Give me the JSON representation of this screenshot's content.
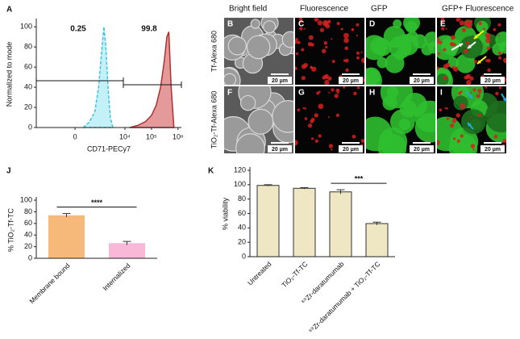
{
  "chart_data": [
    {
      "panel": "A",
      "type": "area",
      "xlabel": "CD71-PECy7",
      "ylabel": "Normalized to mode",
      "xscale": "asinh",
      "xlim": [
        -3800,
        1340000
      ],
      "xticks": [
        0,
        {
          "value": 10000,
          "label": "10⁴"
        },
        {
          "value": 100000,
          "label": "10⁵"
        },
        {
          "value": 1000000,
          "label": "10⁶"
        }
      ],
      "ylim": [
        0,
        105
      ],
      "yticks": [
        0,
        20,
        40,
        60,
        80,
        100
      ],
      "annotations": [
        "0.25",
        "99.8"
      ],
      "series": [
        {
          "color": "#3cc3e0",
          "fill": "#c4f0f8",
          "dash": true,
          "x": [
            200,
            400,
            700,
            1000,
            1300,
            1600,
            1900,
            2300,
            2800,
            3500
          ],
          "y": [
            0,
            5,
            15,
            40,
            75,
            100,
            80,
            40,
            10,
            0
          ]
        },
        {
          "color": "#b03030",
          "fill": "#e49a9a",
          "dash": false,
          "x": [
            15000,
            30000,
            60000,
            100000,
            150000,
            220000,
            300000,
            380000,
            450000,
            550000,
            700000
          ],
          "y": [
            0,
            2,
            6,
            12,
            22,
            40,
            65,
            90,
            95,
            40,
            0
          ]
        }
      ]
    },
    {
      "panel": "J",
      "type": "bar",
      "ylabel": "% TiO₂-Tf-TC",
      "categories": [
        "Membrane bound",
        "Internalized"
      ],
      "values": [
        74,
        26
      ],
      "errors": [
        3,
        3
      ],
      "colors": [
        "#f7b97a",
        "#f9b8d8"
      ],
      "outline": false,
      "ylim": [
        0,
        100
      ],
      "yticks": [
        0,
        20,
        40,
        60,
        80,
        100
      ],
      "annotation": "****"
    },
    {
      "panel": "K",
      "type": "bar",
      "ylabel": "% viability",
      "categories": [
        "Untreated",
        "TiO₂-Tf-TC",
        "⁸⁹Zr-daratumumab",
        "⁸⁹Zr-daratumumab + TiO₂-Tf-TC"
      ],
      "values": [
        99,
        95,
        90,
        46
      ],
      "errors": [
        1,
        1,
        3,
        2
      ],
      "colors": [
        "#efe6c4",
        "#efe6c4",
        "#efe6c4",
        "#efe6c4"
      ],
      "outline": true,
      "ylim": [
        0,
        120
      ],
      "yticks": [
        0,
        20,
        40,
        60,
        80,
        100,
        120
      ],
      "annotation": "***"
    }
  ],
  "micrographs": {
    "columns": [
      "Bright field",
      "Fluorescence",
      "GFP",
      "GFP+ Fluorescence"
    ],
    "rows": [
      "Tf-Alexa 680",
      "TiO₂-Tf-Alexa 680"
    ],
    "panels": [
      "B",
      "C",
      "D",
      "E",
      "F",
      "G",
      "H",
      "I"
    ],
    "scale_bar": "20 µm"
  }
}
